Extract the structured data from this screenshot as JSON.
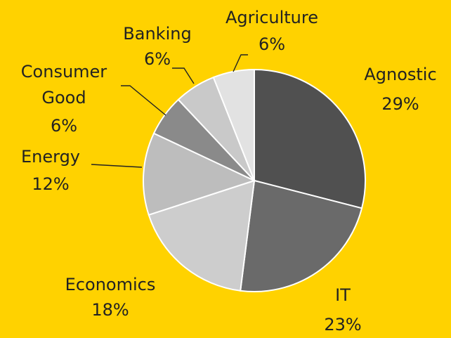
{
  "chart_data": {
    "type": "pie",
    "title": "",
    "slices": [
      {
        "category": "Agnostic",
        "value": 29,
        "label": "29%",
        "color": "#505050"
      },
      {
        "category": "IT",
        "value": 23,
        "label": "23%",
        "color": "#6A6A6A"
      },
      {
        "category": "Economics",
        "value": 18,
        "label": "18%",
        "color": "#CDCDCD"
      },
      {
        "category": "Energy",
        "value": 12,
        "label": "12%",
        "color": "#BDBDBD"
      },
      {
        "category": "Consumer Good",
        "value": 6,
        "label": "6%",
        "color": "#8A8A8A"
      },
      {
        "category": "Banking",
        "value": 6,
        "label": "6%",
        "color": "#C9C9C9"
      },
      {
        "category": "Agriculture",
        "value": 6,
        "label": "6%",
        "color": "#E2E2E2"
      }
    ],
    "legend": "none",
    "data_labels": "category and percent"
  },
  "colors": {
    "background": "#FFD200",
    "label_text": "#222222",
    "slice_border": "#FFFFFF"
  }
}
